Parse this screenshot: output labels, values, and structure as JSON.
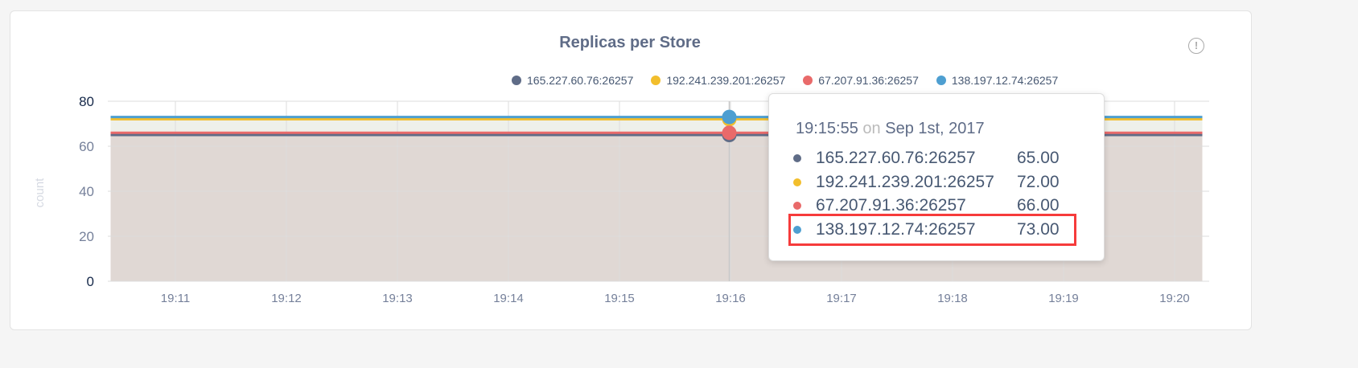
{
  "chart_data": {
    "type": "area",
    "title": "Replicas per Store",
    "ylabel": "count",
    "xlabel": "",
    "ylim": [
      0,
      80
    ],
    "yticks": [
      "0",
      "20",
      "40",
      "60",
      "80"
    ],
    "xticks": [
      "19:11",
      "19:12",
      "19:13",
      "19:14",
      "19:15",
      "19:16",
      "19:17",
      "19:18",
      "19:19",
      "19:20"
    ],
    "xrange": [
      "19:10:25",
      "19:20:15"
    ],
    "grid": true,
    "legend_placement": "top",
    "series": [
      {
        "name": "165.227.60.76:26257",
        "color": "#5f6c87",
        "value": 65
      },
      {
        "name": "192.241.239.201:26257",
        "color": "#f2be2c",
        "value": 72
      },
      {
        "name": "67.207.91.36:26257",
        "color": "#e96a6a",
        "value": 66
      },
      {
        "name": "138.197.12.74:26257",
        "color": "#4e9fd1",
        "value": 73
      }
    ]
  },
  "info_icon": "info-circle-icon",
  "info_symbol": "!",
  "tooltip": {
    "time": "19:15:55",
    "on": "on",
    "date": "Sep 1st, 2017",
    "rows": [
      {
        "name": "165.227.60.76:26257",
        "value": "65.00"
      },
      {
        "name": "192.241.239.201:26257",
        "value": "72.00"
      },
      {
        "name": "67.207.91.36:26257",
        "value": "66.00"
      },
      {
        "name": "138.197.12.74:26257",
        "value": "73.00"
      }
    ],
    "highlight_color": "#f63b3b"
  }
}
